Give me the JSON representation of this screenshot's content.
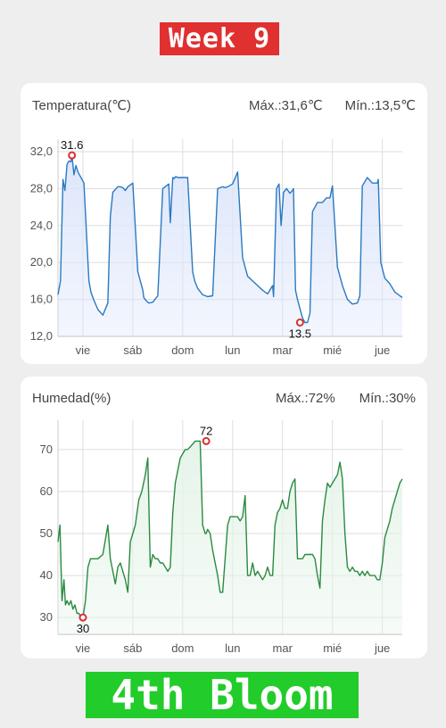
{
  "header": {
    "week_label": "Week 9"
  },
  "footer": {
    "stage_label": "4th Bloom"
  },
  "colors": {
    "temp_line": "#2b79c2",
    "temp_fill": "#dde6fb",
    "hum_line": "#2a8a40",
    "hum_fill": "#e6f4ea",
    "marker": "#d93030",
    "grid": "#dddddd"
  },
  "temperature": {
    "title": "Temperatura(℃)",
    "max_label": "Máx.:31,6℃",
    "min_label": "Mín.:13,5℃"
  },
  "humidity": {
    "title": "Humedad(%)",
    "max_label": "Máx.:72%",
    "min_label": "Mín.:30%"
  },
  "chart_data": [
    {
      "type": "area",
      "series_key": "temperature",
      "x_label_positions": [
        0.5,
        1.5,
        2.5,
        3.5,
        4.5,
        5.5,
        6.5
      ],
      "categories": [
        "vie",
        "sáb",
        "dom",
        "lun",
        "mar",
        "mié",
        "jue"
      ],
      "ylim": [
        12,
        32
      ],
      "yticks": [
        "12,0",
        "16,0",
        "20,0",
        "24,0",
        "28,0",
        "32,0"
      ],
      "ytick_values": [
        12,
        16,
        20,
        24,
        28,
        32
      ],
      "grid": true,
      "peak": {
        "x": 0.28,
        "y": 31.6,
        "label": "31.6"
      },
      "trough": {
        "x": 4.85,
        "y": 13.5,
        "label": "13.5"
      },
      "x": [
        0,
        0.05,
        0.1,
        0.14,
        0.18,
        0.22,
        0.26,
        0.28,
        0.32,
        0.36,
        0.4,
        0.45,
        0.52,
        0.6,
        0.62,
        0.66,
        0.72,
        0.8,
        0.9,
        1.0,
        1.05,
        1.1,
        1.2,
        1.25,
        1.3,
        1.35,
        1.4,
        1.5,
        1.6,
        1.7,
        1.72,
        1.76,
        1.82,
        1.9,
        2.0,
        2.1,
        2.22,
        2.25,
        2.3,
        2.33,
        2.36,
        2.4,
        2.5,
        2.6,
        2.7,
        2.74,
        2.8,
        2.9,
        3.0,
        3.1,
        3.2,
        3.3,
        3.35,
        3.4,
        3.5,
        3.6,
        3.7,
        3.75,
        3.8,
        3.9,
        4.0,
        4.1,
        4.2,
        4.3,
        4.32,
        4.38,
        4.43,
        4.47,
        4.52,
        4.58,
        4.65,
        4.7,
        4.72,
        4.76,
        4.8,
        4.85,
        4.9,
        4.95,
        5.0,
        5.05,
        5.1,
        5.2,
        5.3,
        5.38,
        5.4,
        5.45,
        5.5,
        5.6,
        5.7,
        5.8,
        5.9,
        6.0,
        6.05,
        6.1,
        6.2,
        6.3,
        6.4,
        6.42,
        6.47,
        6.55,
        6.65,
        6.75,
        6.85,
        6.9
      ],
      "y": [
        16.5,
        18.0,
        29.0,
        27.8,
        30.6,
        31.0,
        30.9,
        31.6,
        29.5,
        30.5,
        29.8,
        29.3,
        28.6,
        20.0,
        18.0,
        16.8,
        15.9,
        14.9,
        14.3,
        15.6,
        25.0,
        27.6,
        28.2,
        28.2,
        28.1,
        27.8,
        28.2,
        28.6,
        19.0,
        17.0,
        16.2,
        15.9,
        15.6,
        15.7,
        16.4,
        28.0,
        28.5,
        24.3,
        29.2,
        29.1,
        29.3,
        29.2,
        29.2,
        29.2,
        19.0,
        18.0,
        17.2,
        16.5,
        16.3,
        16.4,
        28.0,
        28.2,
        28.1,
        28.2,
        28.5,
        29.8,
        20.5,
        19.5,
        18.5,
        18.0,
        17.5,
        17.0,
        16.6,
        17.5,
        16.3,
        28.0,
        28.5,
        24.0,
        27.6,
        28.0,
        27.5,
        27.8,
        28.0,
        17.0,
        16.0,
        15.0,
        14.0,
        13.5,
        13.5,
        14.5,
        25.5,
        26.5,
        26.5,
        27.0,
        27.0,
        27.0,
        28.3,
        19.5,
        17.5,
        16.0,
        15.5,
        15.6,
        16.4,
        28.3,
        29.2,
        28.6,
        28.6,
        29.0,
        20.0,
        18.3,
        17.7,
        16.8,
        16.4,
        16.2
      ]
    },
    {
      "type": "area",
      "series_key": "humidity",
      "x_label_positions": [
        0.5,
        1.5,
        2.5,
        3.5,
        4.5,
        5.5,
        6.5
      ],
      "categories": [
        "vie",
        "sáb",
        "dom",
        "lun",
        "mar",
        "mié",
        "jue"
      ],
      "ylim": [
        26,
        74
      ],
      "yticks": [
        "30",
        "40",
        "50",
        "60",
        "70"
      ],
      "ytick_values": [
        30,
        40,
        50,
        60,
        70
      ],
      "grid": true,
      "peak": {
        "x": 2.97,
        "y": 72,
        "label": "72"
      },
      "trough": {
        "x": 0.5,
        "y": 30,
        "label": "30"
      },
      "x": [
        0,
        0.04,
        0.08,
        0.12,
        0.15,
        0.18,
        0.22,
        0.26,
        0.3,
        0.34,
        0.38,
        0.42,
        0.46,
        0.5,
        0.55,
        0.6,
        0.65,
        0.7,
        0.8,
        0.9,
        1.0,
        1.05,
        1.1,
        1.15,
        1.2,
        1.25,
        1.3,
        1.35,
        1.4,
        1.45,
        1.5,
        1.55,
        1.62,
        1.68,
        1.75,
        1.8,
        1.85,
        1.9,
        1.95,
        2.0,
        2.05,
        2.1,
        2.15,
        2.2,
        2.25,
        2.3,
        2.35,
        2.4,
        2.45,
        2.5,
        2.55,
        2.6,
        2.68,
        2.75,
        2.8,
        2.85,
        2.9,
        2.95,
        2.97,
        3.0,
        3.05,
        3.1,
        3.15,
        3.2,
        3.25,
        3.3,
        3.35,
        3.4,
        3.45,
        3.5,
        3.55,
        3.6,
        3.65,
        3.7,
        3.75,
        3.8,
        3.85,
        3.9,
        3.95,
        4.0,
        4.05,
        4.1,
        4.15,
        4.2,
        4.25,
        4.3,
        4.35,
        4.4,
        4.45,
        4.5,
        4.55,
        4.6,
        4.65,
        4.7,
        4.75,
        4.8,
        4.85,
        4.9,
        4.95,
        5.0,
        5.05,
        5.1,
        5.15,
        5.2,
        5.25,
        5.3,
        5.35,
        5.4,
        5.45,
        5.5,
        5.55,
        5.6,
        5.65,
        5.7,
        5.75,
        5.8,
        5.85,
        5.9,
        5.95,
        6.0,
        6.05,
        6.1,
        6.15,
        6.2,
        6.25,
        6.3,
        6.35,
        6.4,
        6.45,
        6.5,
        6.55,
        6.6,
        6.65,
        6.7,
        6.75,
        6.8,
        6.85,
        6.9
      ],
      "y": [
        48,
        52,
        34,
        39,
        33,
        34,
        33,
        34,
        32,
        33,
        31,
        31,
        30,
        30,
        34,
        42,
        44,
        44,
        44,
        45,
        52,
        44,
        41,
        38,
        42,
        43,
        41,
        39,
        36,
        48,
        50,
        52,
        58,
        60,
        64,
        68,
        42,
        45,
        44,
        44,
        43,
        43,
        42,
        41,
        42,
        55,
        62,
        65,
        68,
        69,
        70,
        70,
        71,
        72,
        72,
        72,
        52,
        50,
        50,
        51,
        50,
        46,
        43,
        40,
        36,
        36,
        44,
        52,
        54,
        54,
        54,
        54,
        53,
        54,
        59,
        40,
        40,
        43,
        40,
        41,
        40,
        39,
        40,
        42,
        40,
        40,
        52,
        55,
        56,
        58,
        56,
        56,
        60,
        62,
        63,
        44,
        44,
        44,
        45,
        45,
        45,
        45,
        44,
        40,
        37,
        53,
        58,
        62,
        61,
        62,
        63,
        64,
        67,
        63,
        50,
        42,
        41,
        42,
        41,
        41,
        40,
        41,
        40,
        41,
        40,
        40,
        40,
        39,
        39,
        43,
        49,
        51,
        53,
        56,
        58,
        60,
        62,
        63
      ]
    }
  ]
}
